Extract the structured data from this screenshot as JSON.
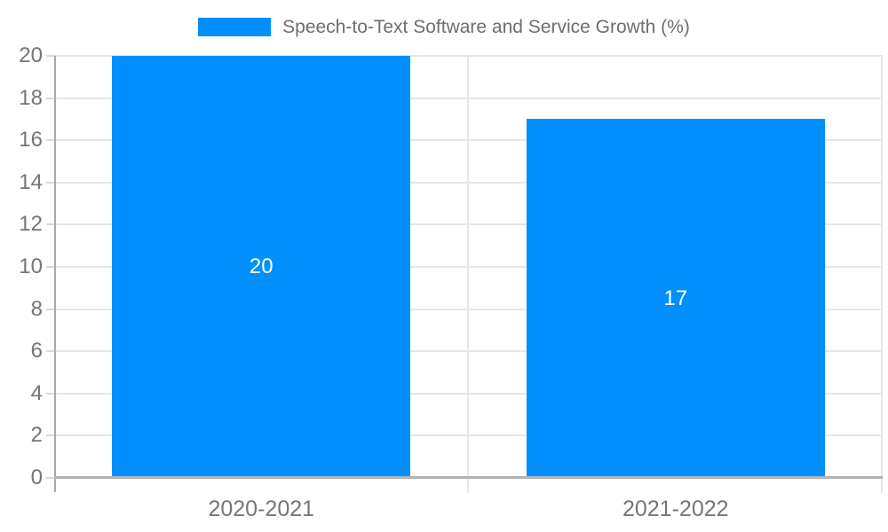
{
  "chart_data": {
    "type": "bar",
    "title": "Speech-to-Text Software and Service Growth (%)",
    "categories": [
      "2020-2021",
      "2021-2022"
    ],
    "series": [
      {
        "name": "Speech-to-Text Software and Service Growth (%)",
        "values": [
          20,
          17
        ]
      }
    ],
    "data_labels": [
      "20",
      "17"
    ],
    "xlabel": "",
    "ylabel": "",
    "ylim": [
      0,
      20
    ],
    "yticks": [
      0,
      2,
      4,
      6,
      8,
      10,
      12,
      14,
      16,
      18,
      20
    ],
    "grid": true,
    "legend_position": "top"
  },
  "legend": {
    "label": "Speech-to-Text Software and Service Growth (%)"
  },
  "colors": {
    "bar": "#008FFB",
    "axis_label": "#757575",
    "legend_label": "#6e6e6e",
    "gridline": "#e6e6e6",
    "y_axis_line": "#a9a9a9",
    "x_axis_line": "#b3b3b3",
    "tick_mark": "#d9d9d9",
    "data_label": "#ffffff",
    "background": "#ffffff"
  }
}
